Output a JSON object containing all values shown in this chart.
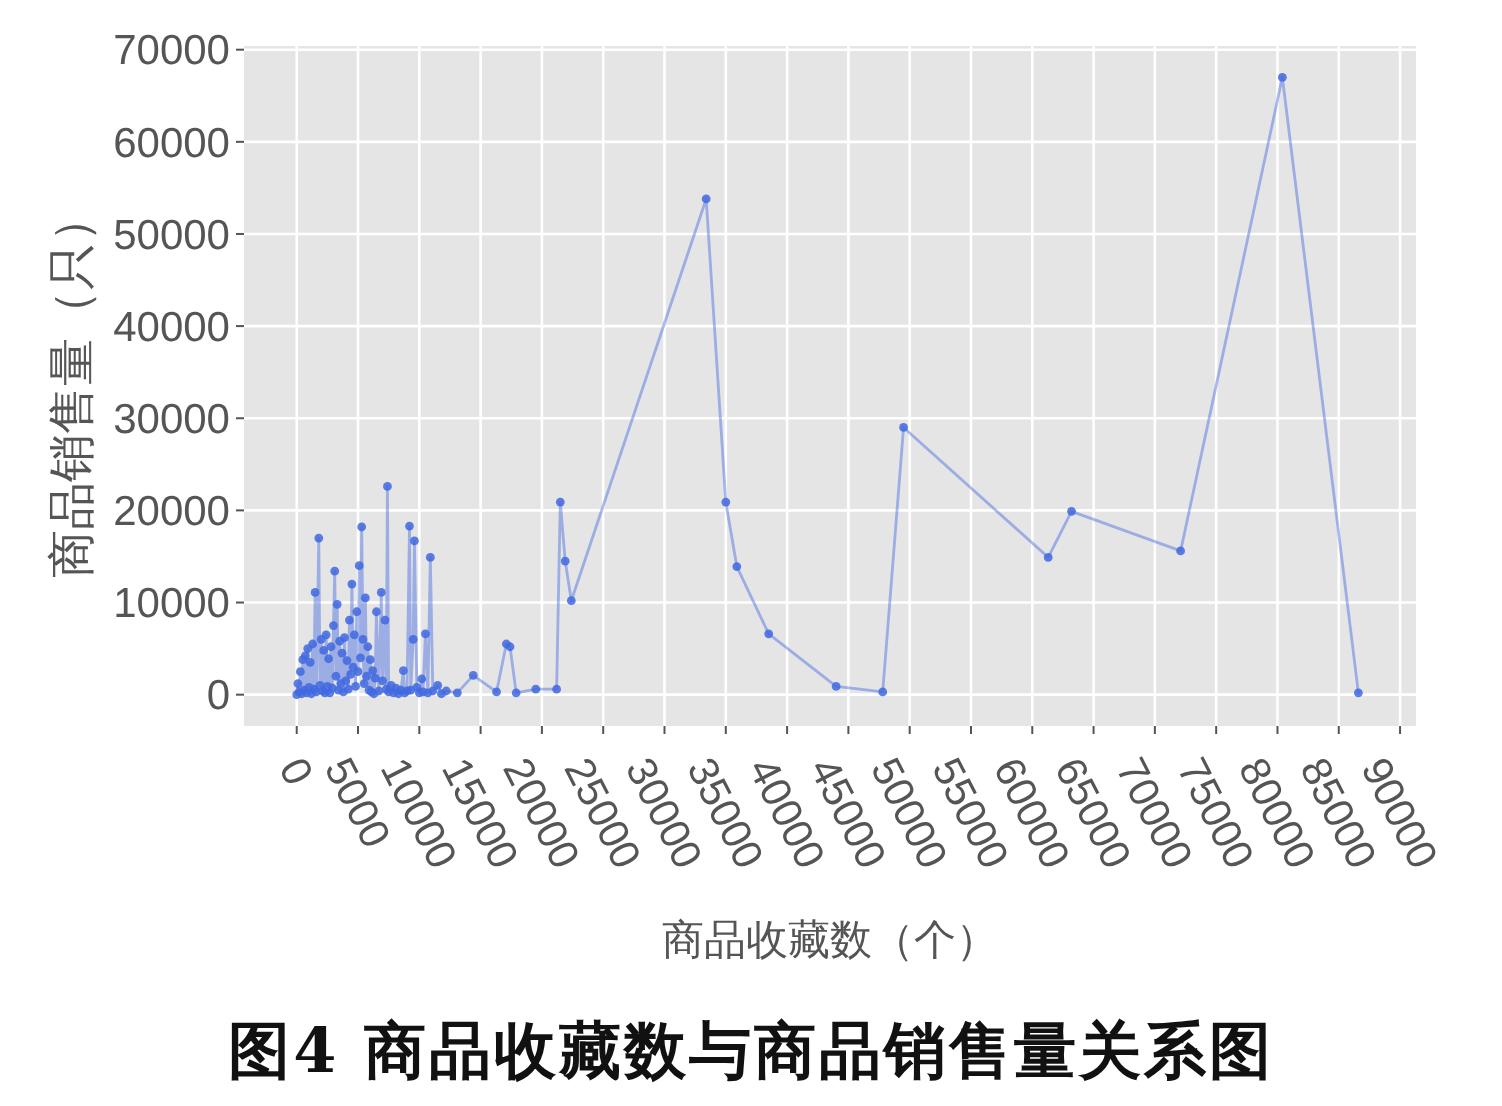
{
  "chart_data": {
    "type": "line",
    "xlabel": "商品收藏数（个）",
    "ylabel": "商品销售量（只）",
    "annotations": [
      "图4 商品收藏数与商品销售量关系图"
    ],
    "x": [
      0,
      100,
      200,
      300,
      400,
      500,
      600,
      700,
      800,
      900,
      1000,
      1100,
      1200,
      1300,
      1400,
      1500,
      1600,
      1800,
      1900,
      2000,
      2100,
      2200,
      2300,
      2400,
      2500,
      2600,
      2700,
      2800,
      2900,
      3000,
      3100,
      3200,
      3300,
      3400,
      3500,
      3600,
      3700,
      3800,
      3900,
      4000,
      4100,
      4200,
      4300,
      4400,
      4500,
      4600,
      4700,
      4800,
      4900,
      5000,
      5100,
      5200,
      5300,
      5400,
      5500,
      5600,
      5700,
      5800,
      5900,
      6000,
      6100,
      6200,
      6300,
      6400,
      6500,
      6700,
      6900,
      7000,
      7200,
      7300,
      7400,
      7500,
      7700,
      7900,
      8100,
      8300,
      8500,
      8700,
      8800,
      9000,
      9200,
      9300,
      9500,
      9600,
      9800,
      10000,
      10200,
      10300,
      10500,
      10700,
      10900,
      11100,
      11500,
      11800,
      12200,
      13100,
      14400,
      16300,
      17100,
      17400,
      17900,
      19500,
      21200,
      21500,
      21900,
      22400,
      33400,
      35000,
      35900,
      38500,
      44000,
      47800,
      49500,
      61300,
      63200,
      72100,
      80400,
      86600
    ],
    "series": [
      {
        "color": "#4169e1",
        "values": [
          0,
          1200,
          300,
          2500,
          100,
          3800,
          500,
          4200,
          200,
          5000,
          800,
          3500,
          100,
          5500,
          600,
          11100,
          300,
          17000,
          1000,
          6000,
          400,
          4800,
          200,
          6500,
          900,
          3900,
          200,
          5200,
          700,
          7500,
          13400,
          2000,
          9800,
          500,
          5800,
          1200,
          4500,
          300,
          6200,
          1500,
          3700,
          600,
          8100,
          2200,
          12000,
          3000,
          6500,
          900,
          9000,
          2500,
          14000,
          4000,
          18200,
          6000,
          1200,
          10500,
          2000,
          5200,
          500,
          3800,
          300,
          2600,
          100,
          1800,
          9000,
          400,
          11100,
          1500,
          8100,
          600,
          22600,
          300,
          1000,
          200,
          700,
          100,
          500,
          2600,
          200,
          400,
          18300,
          500,
          6000,
          16700,
          800,
          200,
          1700,
          300,
          6600,
          200,
          14900,
          400,
          1000,
          100,
          400,
          200,
          2100,
          300,
          5500,
          5200,
          200,
          600,
          600,
          20900,
          14500,
          10200,
          53800,
          20900,
          13900,
          6600,
          900,
          300,
          29000,
          14900,
          19900,
          15600,
          67000,
          200
        ]
      }
    ],
    "xlim": [
      -4300,
      91300
    ],
    "ylim": [
      -3400,
      70400
    ],
    "xticks": [
      0,
      5000,
      10000,
      15000,
      20000,
      25000,
      30000,
      35000,
      40000,
      45000,
      50000,
      55000,
      60000,
      65000,
      70000,
      75000,
      80000,
      85000,
      90000
    ],
    "yticks": [
      0,
      10000,
      20000,
      30000,
      40000,
      50000,
      60000,
      70000
    ],
    "grid": true,
    "marker": "circle",
    "line_style": "solid"
  }
}
